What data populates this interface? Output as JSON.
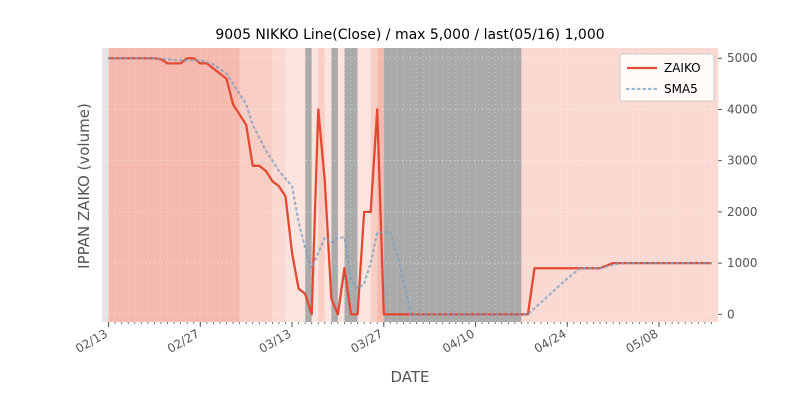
{
  "chart_data": {
    "type": "line",
    "title": "9005 NIKKO Line(Close) / max 5,000 / last(05/16) 1,000",
    "xlabel": "DATE",
    "ylabel": "IPPAN ZAIKO (volume)",
    "x_start": "2025-02-13",
    "x_end": "2025-05-16",
    "xlim": [
      "2025-02-12",
      "2025-05-17"
    ],
    "ylim": [
      -150,
      5200
    ],
    "yticks": [
      0,
      1000,
      2000,
      3000,
      4000,
      5000
    ],
    "y_tick_labels": [
      "0",
      "1000",
      "2000",
      "3000",
      "4000",
      "5000"
    ],
    "xticks": [
      "2025-02-13",
      "2025-02-27",
      "2025-03-13",
      "2025-03-27",
      "2025-04-10",
      "2025-04-24",
      "2025-05-08"
    ],
    "x_tick_labels": [
      "02/13",
      "02/27",
      "03/13",
      "03/27",
      "04/10",
      "04/24",
      "05/08"
    ],
    "grid": true,
    "legend_position": "top-right",
    "series": [
      {
        "name": "ZAIKO",
        "color": "#e24a33",
        "style": "solid",
        "points": [
          [
            "2025-02-13",
            5000
          ],
          [
            "2025-02-20",
            5000
          ],
          [
            "2025-02-21",
            4980
          ],
          [
            "2025-02-22",
            4900
          ],
          [
            "2025-02-24",
            4900
          ],
          [
            "2025-02-25",
            5000
          ],
          [
            "2025-02-26",
            5000
          ],
          [
            "2025-02-27",
            4900
          ],
          [
            "2025-02-28",
            4900
          ],
          [
            "2025-03-01",
            4800
          ],
          [
            "2025-03-03",
            4600
          ],
          [
            "2025-03-04",
            4100
          ],
          [
            "2025-03-06",
            3700
          ],
          [
            "2025-03-07",
            2900
          ],
          [
            "2025-03-08",
            2900
          ],
          [
            "2025-03-09",
            2800
          ],
          [
            "2025-03-10",
            2600
          ],
          [
            "2025-03-11",
            2500
          ],
          [
            "2025-03-12",
            2300
          ],
          [
            "2025-03-13",
            1200
          ],
          [
            "2025-03-14",
            500
          ],
          [
            "2025-03-15",
            400
          ],
          [
            "2025-03-16",
            0
          ],
          [
            "2025-03-17",
            4000
          ],
          [
            "2025-03-18",
            2600
          ],
          [
            "2025-03-19",
            300
          ],
          [
            "2025-03-20",
            0
          ],
          [
            "2025-03-21",
            900
          ],
          [
            "2025-03-22",
            0
          ],
          [
            "2025-03-23",
            0
          ],
          [
            "2025-03-24",
            2000
          ],
          [
            "2025-03-25",
            2000
          ],
          [
            "2025-03-26",
            4000
          ],
          [
            "2025-03-27",
            0
          ],
          [
            "2025-04-18",
            0
          ],
          [
            "2025-04-19",
            900
          ],
          [
            "2025-04-29",
            900
          ],
          [
            "2025-05-01",
            1000
          ],
          [
            "2025-05-16",
            1000
          ]
        ]
      },
      {
        "name": "SMA5",
        "color": "#7a9fc2",
        "style": "dotted",
        "points": [
          [
            "2025-02-13",
            5000
          ],
          [
            "2025-02-20",
            5000
          ],
          [
            "2025-02-22",
            4980
          ],
          [
            "2025-02-24",
            4960
          ],
          [
            "2025-02-27",
            4960
          ],
          [
            "2025-02-28",
            4920
          ],
          [
            "2025-03-01",
            4880
          ],
          [
            "2025-03-03",
            4700
          ],
          [
            "2025-03-04",
            4500
          ],
          [
            "2025-03-06",
            4100
          ],
          [
            "2025-03-07",
            3700
          ],
          [
            "2025-03-09",
            3200
          ],
          [
            "2025-03-11",
            2800
          ],
          [
            "2025-03-13",
            2500
          ],
          [
            "2025-03-14",
            1800
          ],
          [
            "2025-03-15",
            1300
          ],
          [
            "2025-03-16",
            900
          ],
          [
            "2025-03-17",
            1200
          ],
          [
            "2025-03-18",
            1500
          ],
          [
            "2025-03-19",
            1400
          ],
          [
            "2025-03-20",
            1500
          ],
          [
            "2025-03-21",
            1500
          ],
          [
            "2025-03-22",
            700
          ],
          [
            "2025-03-23",
            500
          ],
          [
            "2025-03-24",
            600
          ],
          [
            "2025-03-25",
            1000
          ],
          [
            "2025-03-26",
            1600
          ],
          [
            "2025-03-27",
            1600
          ],
          [
            "2025-03-28",
            1600
          ],
          [
            "2025-03-29",
            1200
          ],
          [
            "2025-03-31",
            100
          ],
          [
            "2025-03-31",
            0
          ],
          [
            "2025-04-18",
            0
          ],
          [
            "2025-04-24",
            700
          ],
          [
            "2025-04-26",
            900
          ],
          [
            "2025-04-29",
            900
          ],
          [
            "2025-05-02",
            1000
          ],
          [
            "2025-05-16",
            1000
          ]
        ]
      }
    ],
    "background_bands": [
      {
        "from": "2025-02-12",
        "to": "2025-02-13",
        "color": "#e5e5e5"
      },
      {
        "from": "2025-02-13",
        "to": "2025-03-05",
        "color": "#f6b9ae"
      },
      {
        "from": "2025-03-05",
        "to": "2025-03-10",
        "color": "#f8cdc4"
      },
      {
        "from": "2025-03-10",
        "to": "2025-03-12",
        "color": "#f9d9d2"
      },
      {
        "from": "2025-03-12",
        "to": "2025-03-15",
        "color": "#fbe3de"
      },
      {
        "from": "2025-03-15",
        "to": "2025-03-16",
        "color": "#aaaaaa"
      },
      {
        "from": "2025-03-16",
        "to": "2025-03-17",
        "color": "#fbe3de"
      },
      {
        "from": "2025-03-17",
        "to": "2025-03-18",
        "color": "#f8cdc4"
      },
      {
        "from": "2025-03-18",
        "to": "2025-03-19",
        "color": "#fbe3de"
      },
      {
        "from": "2025-03-19",
        "to": "2025-03-20",
        "color": "#aaaaaa"
      },
      {
        "from": "2025-03-20",
        "to": "2025-03-21",
        "color": "#fbe3de"
      },
      {
        "from": "2025-03-21",
        "to": "2025-03-23",
        "color": "#aaaaaa"
      },
      {
        "from": "2025-03-23",
        "to": "2025-03-25",
        "color": "#fbe3de"
      },
      {
        "from": "2025-03-25",
        "to": "2025-03-26",
        "color": "#f8cdc4"
      },
      {
        "from": "2025-03-26",
        "to": "2025-03-27",
        "color": "#f6b9ae"
      },
      {
        "from": "2025-03-27",
        "to": "2025-04-17",
        "color": "#aaaaaa"
      },
      {
        "from": "2025-04-17",
        "to": "2025-05-17",
        "color": "#f9d9d2"
      }
    ]
  }
}
